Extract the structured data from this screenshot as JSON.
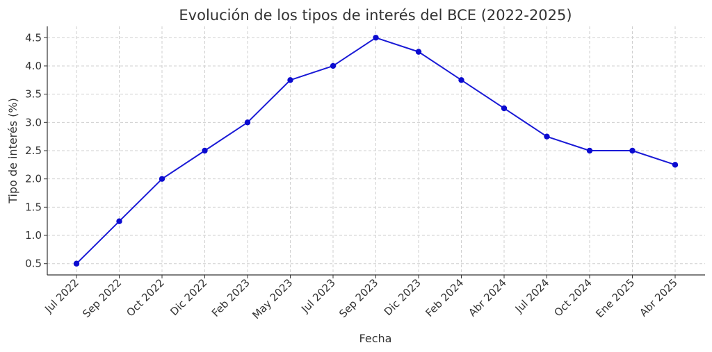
{
  "chart_data": {
    "type": "line",
    "title": "Evolución de los tipos de interés del BCE (2022-2025)",
    "xlabel": "Fecha",
    "ylabel": "Tipo de interés (%)",
    "categories": [
      "Jul 2022",
      "Sep 2022",
      "Oct 2022",
      "Dic 2022",
      "Feb 2023",
      "May 2023",
      "Jul 2023",
      "Sep 2023",
      "Dic 2023",
      "Feb 2024",
      "Abr 2024",
      "Jul 2024",
      "Oct 2024",
      "Ene 2025",
      "Abr 2025"
    ],
    "series": [
      {
        "values": [
          0.5,
          1.25,
          2.0,
          2.5,
          3.0,
          3.75,
          4.0,
          4.5,
          4.25,
          3.75,
          3.25,
          2.75,
          2.5,
          2.5,
          2.25
        ]
      }
    ],
    "yticks": [
      "0.5",
      "1.0",
      "1.5",
      "2.0",
      "2.5",
      "3.0",
      "3.5",
      "4.0",
      "4.5"
    ],
    "ylim": [
      0.3,
      4.7
    ],
    "grid": true,
    "line_color": "#1a1ad6",
    "marker_color": "#0b0bd0"
  }
}
